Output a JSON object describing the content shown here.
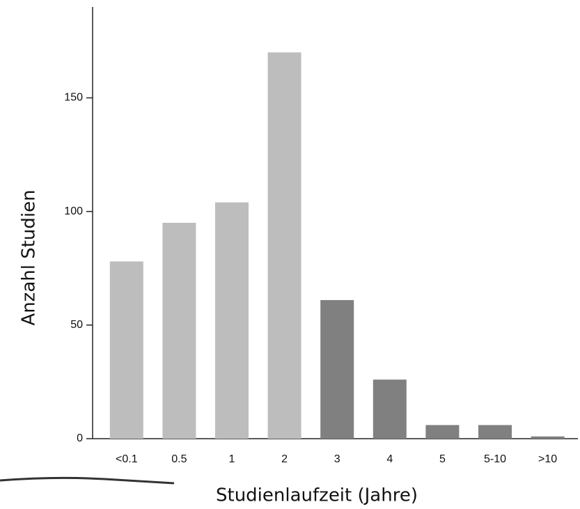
{
  "chart_data": {
    "type": "bar",
    "x_label": "Studienlaufzeit (Jahre)",
    "y_label": "Anzahl Studien",
    "categories": [
      "<0.1",
      "0.5",
      "1",
      "2",
      "3",
      "4",
      "5",
      "5-10",
      ">10"
    ],
    "values": [
      78,
      95,
      104,
      170,
      61,
      26,
      6,
      6,
      1
    ],
    "colors": [
      "#bdbdbd",
      "#bdbdbd",
      "#bdbdbd",
      "#bdbdbd",
      "#808080",
      "#808080",
      "#808080",
      "#808080",
      "#808080"
    ],
    "ylim": [
      0,
      190
    ],
    "yticks": [
      0,
      50,
      100,
      150
    ],
    "grid": false
  }
}
